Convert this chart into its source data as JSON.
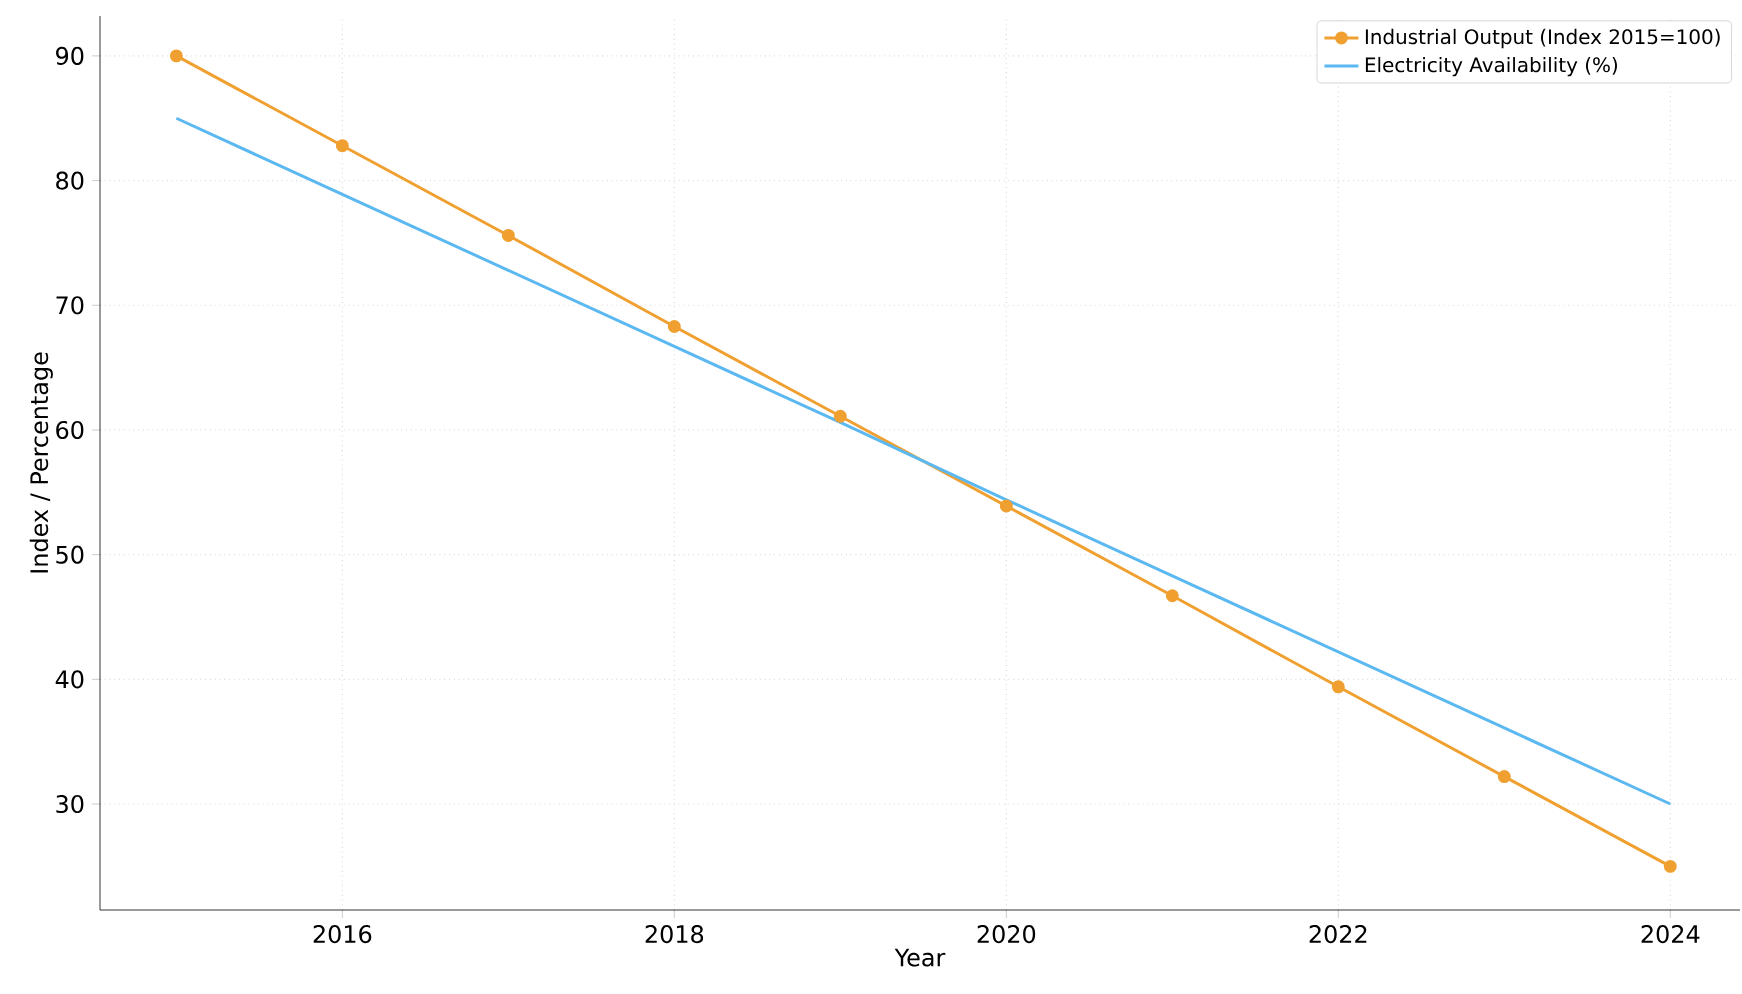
{
  "chart_data": {
    "type": "line",
    "xlabel": "Year",
    "ylabel": "Index / Percentage",
    "x": [
      2015,
      2016,
      2017,
      2018,
      2019,
      2020,
      2021,
      2022,
      2023,
      2024
    ],
    "series": [
      {
        "name": "Industrial Output (Index 2015=100)",
        "color": "#f0a030",
        "marker": "circle",
        "values": [
          90,
          82.8,
          75.6,
          68.3,
          61.1,
          53.9,
          46.7,
          39.4,
          32.2,
          25
        ]
      },
      {
        "name": "Electricity Availability (%)",
        "color": "#5bb8f0",
        "marker": "none",
        "values": [
          85,
          78.9,
          72.8,
          66.7,
          60.6,
          54.4,
          48.3,
          42.2,
          36.1,
          30
        ]
      }
    ],
    "xlim": [
      2014.54,
      2024.42
    ],
    "xticks": [
      2016,
      2018,
      2020,
      2022,
      2024
    ],
    "ylim": [
      21.5,
      93.2
    ],
    "yticks": [
      30,
      40,
      50,
      60,
      70,
      80,
      90
    ],
    "grid": true,
    "legend": "top right",
    "line_style": "solid"
  }
}
